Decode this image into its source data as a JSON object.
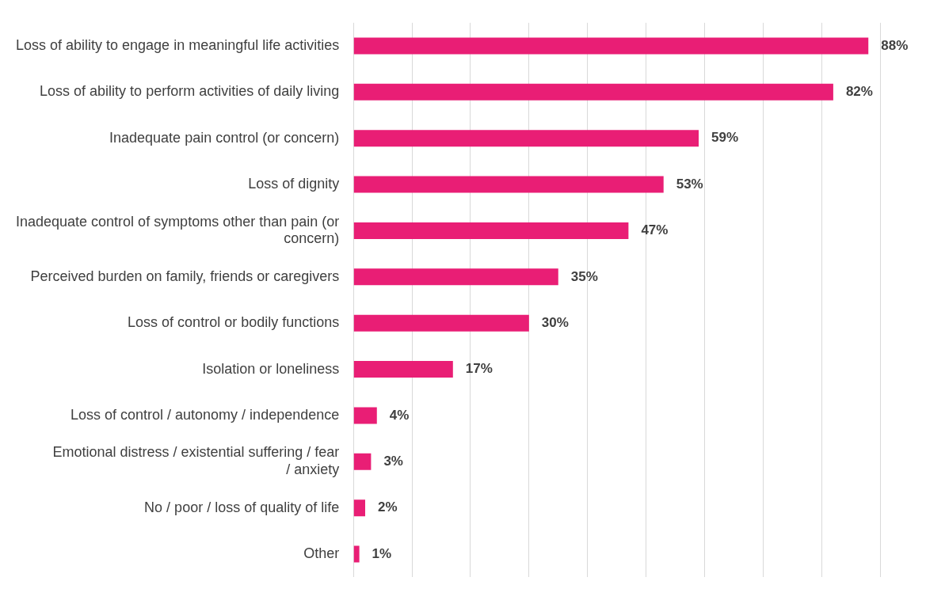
{
  "chart_data": {
    "type": "bar",
    "orientation": "horizontal",
    "categories": [
      "Loss of ability to engage in meaningful life activities",
      "Loss of ability to perform activities of daily living",
      "Inadequate pain control (or concern)",
      "Loss of dignity",
      "Inadequate control of symptoms other than pain (or concern)",
      "Perceived burden on family, friends or caregivers",
      "Loss of control or bodily functions",
      "Isolation or loneliness",
      "Loss of control / autonomy / independence",
      "Emotional distress / existential suffering / fear / anxiety",
      "No / poor / loss of quality of life",
      "Other"
    ],
    "values": [
      88,
      82,
      59,
      53,
      47,
      35,
      30,
      17,
      4,
      3,
      2,
      1
    ],
    "value_labels": [
      "88%",
      "82%",
      "59%",
      "53%",
      "47%",
      "35%",
      "30%",
      "17%",
      "4%",
      "3%",
      "2%",
      "1%"
    ],
    "color": "#e91e75",
    "xlim": [
      0,
      90
    ],
    "xticks": [
      {
        "value": 0,
        "label": null
      },
      {
        "value": 10,
        "label": null
      },
      {
        "value": 20,
        "label": null
      },
      {
        "value": 30,
        "label": null
      },
      {
        "value": 40,
        "label": null
      },
      {
        "value": 50,
        "label": null
      },
      {
        "value": 60,
        "label": null
      },
      {
        "value": 70,
        "label": null
      },
      {
        "value": 80,
        "label": null
      },
      {
        "value": 90,
        "label": null
      }
    ],
    "grid": "x",
    "tick_labels": "y",
    "legend": false
  }
}
